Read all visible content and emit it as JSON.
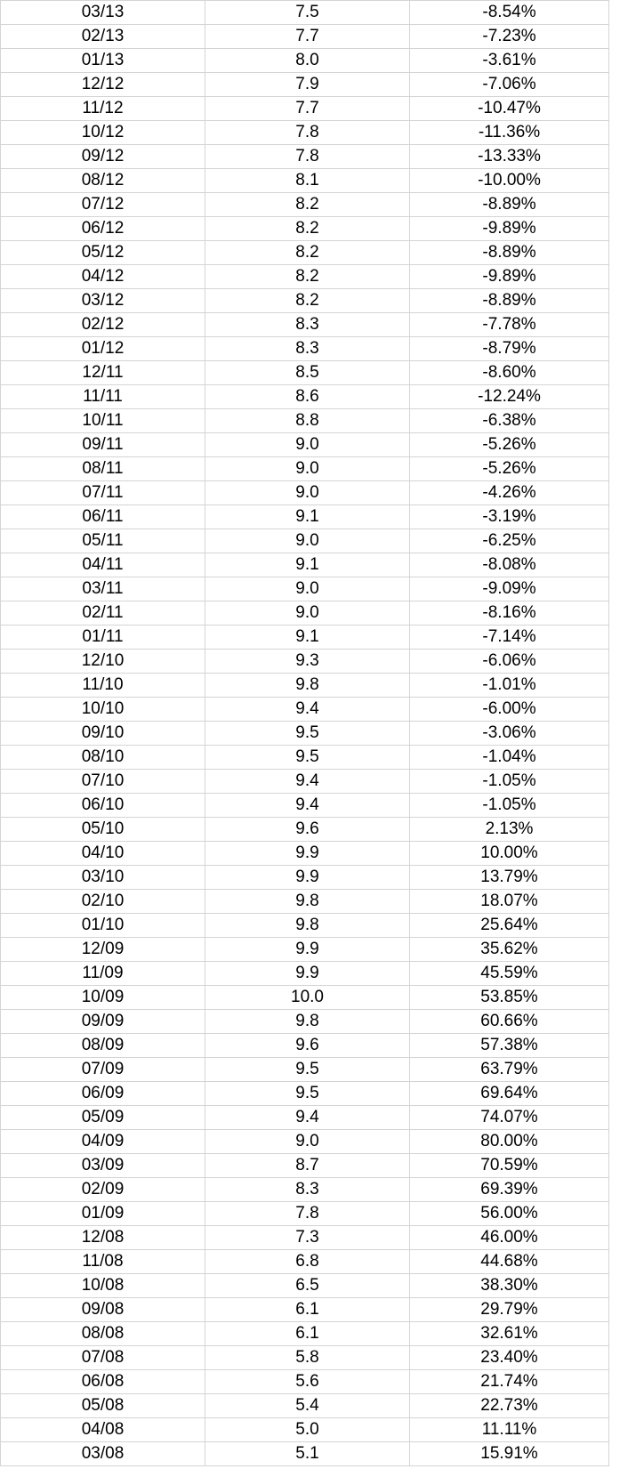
{
  "table": {
    "rows": [
      [
        "03/13",
        "7.5",
        "-8.54%"
      ],
      [
        "02/13",
        "7.7",
        "-7.23%"
      ],
      [
        "01/13",
        "8.0",
        "-3.61%"
      ],
      [
        "12/12",
        "7.9",
        "-7.06%"
      ],
      [
        "11/12",
        "7.7",
        "-10.47%"
      ],
      [
        "10/12",
        "7.8",
        "-11.36%"
      ],
      [
        "09/12",
        "7.8",
        "-13.33%"
      ],
      [
        "08/12",
        "8.1",
        "-10.00%"
      ],
      [
        "07/12",
        "8.2",
        "-8.89%"
      ],
      [
        "06/12",
        "8.2",
        "-9.89%"
      ],
      [
        "05/12",
        "8.2",
        "-8.89%"
      ],
      [
        "04/12",
        "8.2",
        "-9.89%"
      ],
      [
        "03/12",
        "8.2",
        "-8.89%"
      ],
      [
        "02/12",
        "8.3",
        "-7.78%"
      ],
      [
        "01/12",
        "8.3",
        "-8.79%"
      ],
      [
        "12/11",
        "8.5",
        "-8.60%"
      ],
      [
        "11/11",
        "8.6",
        "-12.24%"
      ],
      [
        "10/11",
        "8.8",
        "-6.38%"
      ],
      [
        "09/11",
        "9.0",
        "-5.26%"
      ],
      [
        "08/11",
        "9.0",
        "-5.26%"
      ],
      [
        "07/11",
        "9.0",
        "-4.26%"
      ],
      [
        "06/11",
        "9.1",
        "-3.19%"
      ],
      [
        "05/11",
        "9.0",
        "-6.25%"
      ],
      [
        "04/11",
        "9.1",
        "-8.08%"
      ],
      [
        "03/11",
        "9.0",
        "-9.09%"
      ],
      [
        "02/11",
        "9.0",
        "-8.16%"
      ],
      [
        "01/11",
        "9.1",
        "-7.14%"
      ],
      [
        "12/10",
        "9.3",
        "-6.06%"
      ],
      [
        "11/10",
        "9.8",
        "-1.01%"
      ],
      [
        "10/10",
        "9.4",
        "-6.00%"
      ],
      [
        "09/10",
        "9.5",
        "-3.06%"
      ],
      [
        "08/10",
        "9.5",
        "-1.04%"
      ],
      [
        "07/10",
        "9.4",
        "-1.05%"
      ],
      [
        "06/10",
        "9.4",
        "-1.05%"
      ],
      [
        "05/10",
        "9.6",
        "2.13%"
      ],
      [
        "04/10",
        "9.9",
        "10.00%"
      ],
      [
        "03/10",
        "9.9",
        "13.79%"
      ],
      [
        "02/10",
        "9.8",
        "18.07%"
      ],
      [
        "01/10",
        "9.8",
        "25.64%"
      ],
      [
        "12/09",
        "9.9",
        "35.62%"
      ],
      [
        "11/09",
        "9.9",
        "45.59%"
      ],
      [
        "10/09",
        "10.0",
        "53.85%"
      ],
      [
        "09/09",
        "9.8",
        "60.66%"
      ],
      [
        "08/09",
        "9.6",
        "57.38%"
      ],
      [
        "07/09",
        "9.5",
        "63.79%"
      ],
      [
        "06/09",
        "9.5",
        "69.64%"
      ],
      [
        "05/09",
        "9.4",
        "74.07%"
      ],
      [
        "04/09",
        "9.0",
        "80.00%"
      ],
      [
        "03/09",
        "8.7",
        "70.59%"
      ],
      [
        "02/09",
        "8.3",
        "69.39%"
      ],
      [
        "01/09",
        "7.8",
        "56.00%"
      ],
      [
        "12/08",
        "7.3",
        "46.00%"
      ],
      [
        "11/08",
        "6.8",
        "44.68%"
      ],
      [
        "10/08",
        "6.5",
        "38.30%"
      ],
      [
        "09/08",
        "6.1",
        "29.79%"
      ],
      [
        "08/08",
        "6.1",
        "32.61%"
      ],
      [
        "07/08",
        "5.8",
        "23.40%"
      ],
      [
        "06/08",
        "5.6",
        "21.74%"
      ],
      [
        "05/08",
        "5.4",
        "22.73%"
      ],
      [
        "04/08",
        "5.0",
        "11.11%"
      ],
      [
        "03/08",
        "5.1",
        "15.91%"
      ]
    ]
  },
  "colors": {
    "gridline": "#d4d4d4",
    "text": "#000000",
    "background": "#ffffff"
  }
}
